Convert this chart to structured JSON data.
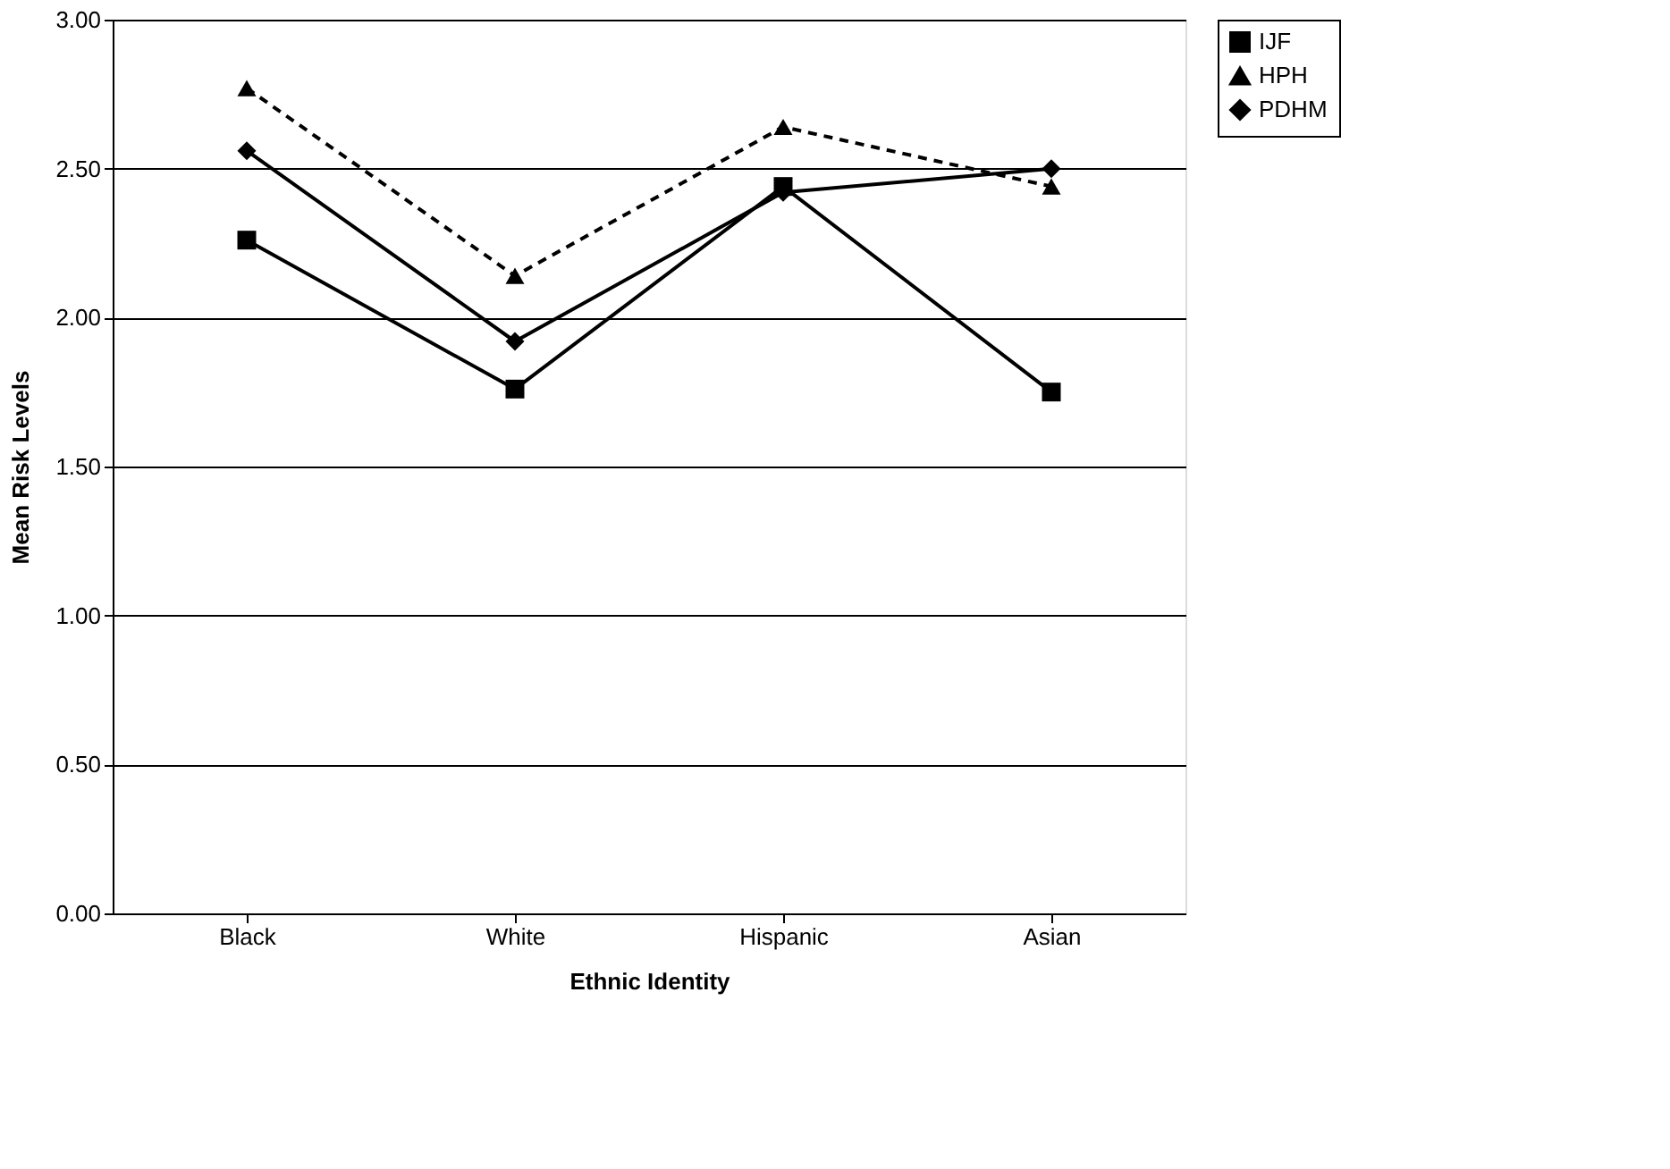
{
  "chart_data": {
    "type": "line",
    "xlabel": "Ethnic Identity",
    "ylabel": "Mean Risk Levels",
    "categories": [
      "Black",
      "White",
      "Hispanic",
      "Asian"
    ],
    "series": [
      {
        "name": "IJF",
        "color": "#000000",
        "values": [
          2.26,
          1.76,
          2.44,
          1.75
        ],
        "marker": "square",
        "line_style": "solid"
      },
      {
        "name": "HPH",
        "color": "#000000",
        "values": [
          2.77,
          2.14,
          2.64,
          2.44
        ],
        "marker": "triangle",
        "line_style": "dashed"
      },
      {
        "name": "PDHM",
        "color": "#000000",
        "values": [
          2.56,
          1.92,
          2.42,
          2.5
        ],
        "marker": "diamond",
        "line_style": "solid"
      }
    ],
    "ylim": [
      0,
      3
    ],
    "yticks": [
      {
        "value": 0,
        "label": "0.00"
      },
      {
        "value": 0.5,
        "label": "0.50"
      },
      {
        "value": 1,
        "label": "1.00"
      },
      {
        "value": 1.5,
        "label": "1.50"
      },
      {
        "value": 2,
        "label": "2.00"
      },
      {
        "value": 2.5,
        "label": "2.50"
      },
      {
        "value": 3,
        "label": "3.00"
      }
    ],
    "grid": "y",
    "legend": "right"
  }
}
